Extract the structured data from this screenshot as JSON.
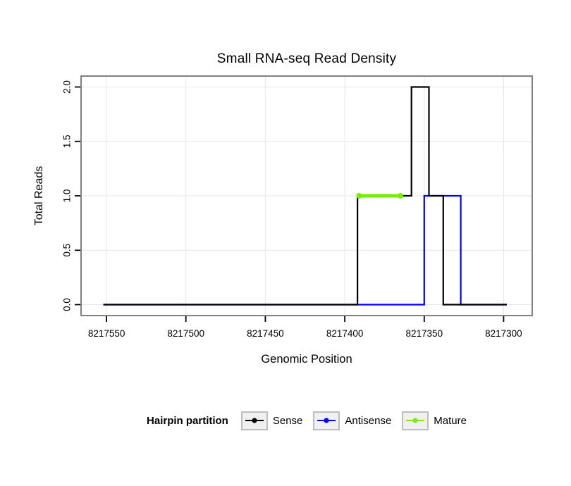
{
  "chart_data": {
    "type": "line",
    "title": "Small RNA-seq Read Density",
    "xlabel": "Genomic Position",
    "ylabel": "Total Reads",
    "x_axis_reversed": true,
    "xlim": [
      8217566,
      8217282
    ],
    "ylim": [
      -0.1,
      2.1
    ],
    "x_ticks": [
      8217550,
      8217500,
      8217450,
      8217400,
      8217350,
      8217300
    ],
    "x_tick_labels": [
      "8217550",
      "8217500",
      "8217450",
      "8217400",
      "8217350",
      "8217300"
    ],
    "y_ticks": [
      0,
      0.5,
      1,
      1.5,
      2
    ],
    "y_tick_labels": [
      "0.0",
      "0.5",
      "1.0",
      "1.5",
      "2.0"
    ],
    "grid": true,
    "legend": {
      "title": "Hairpin partition",
      "position": "bottom",
      "entries": [
        "Sense",
        "Antisense",
        "Mature"
      ]
    },
    "colors": {
      "background": "#ffffff",
      "grid": "#e6e6e6",
      "plot_border": "#808080",
      "tick": "#000000"
    },
    "series": [
      {
        "name": "Sense",
        "color": "#000000",
        "type": "step",
        "width": 2.2,
        "z": 2,
        "points": [
          [
            8217552,
            0
          ],
          [
            8217392,
            0
          ],
          [
            8217392,
            1
          ],
          [
            8217358,
            1
          ],
          [
            8217358,
            2
          ],
          [
            8217347,
            2
          ],
          [
            8217347,
            1
          ],
          [
            8217338,
            1
          ],
          [
            8217338,
            0
          ],
          [
            8217298,
            0
          ]
        ]
      },
      {
        "name": "Antisense",
        "color": "#0000ff",
        "type": "step",
        "width": 2.2,
        "z": 1,
        "points": [
          [
            8217552,
            0
          ],
          [
            8217350,
            0
          ],
          [
            8217350,
            1
          ],
          [
            8217327,
            1
          ],
          [
            8217327,
            0
          ],
          [
            8217298,
            0
          ]
        ]
      },
      {
        "name": "Mature",
        "color": "#76ee00",
        "type": "segment",
        "width": 5,
        "z": 3,
        "show_points": true,
        "point_radius": 4,
        "points": [
          [
            8217391,
            1
          ],
          [
            8217365,
            1
          ]
        ]
      }
    ]
  }
}
